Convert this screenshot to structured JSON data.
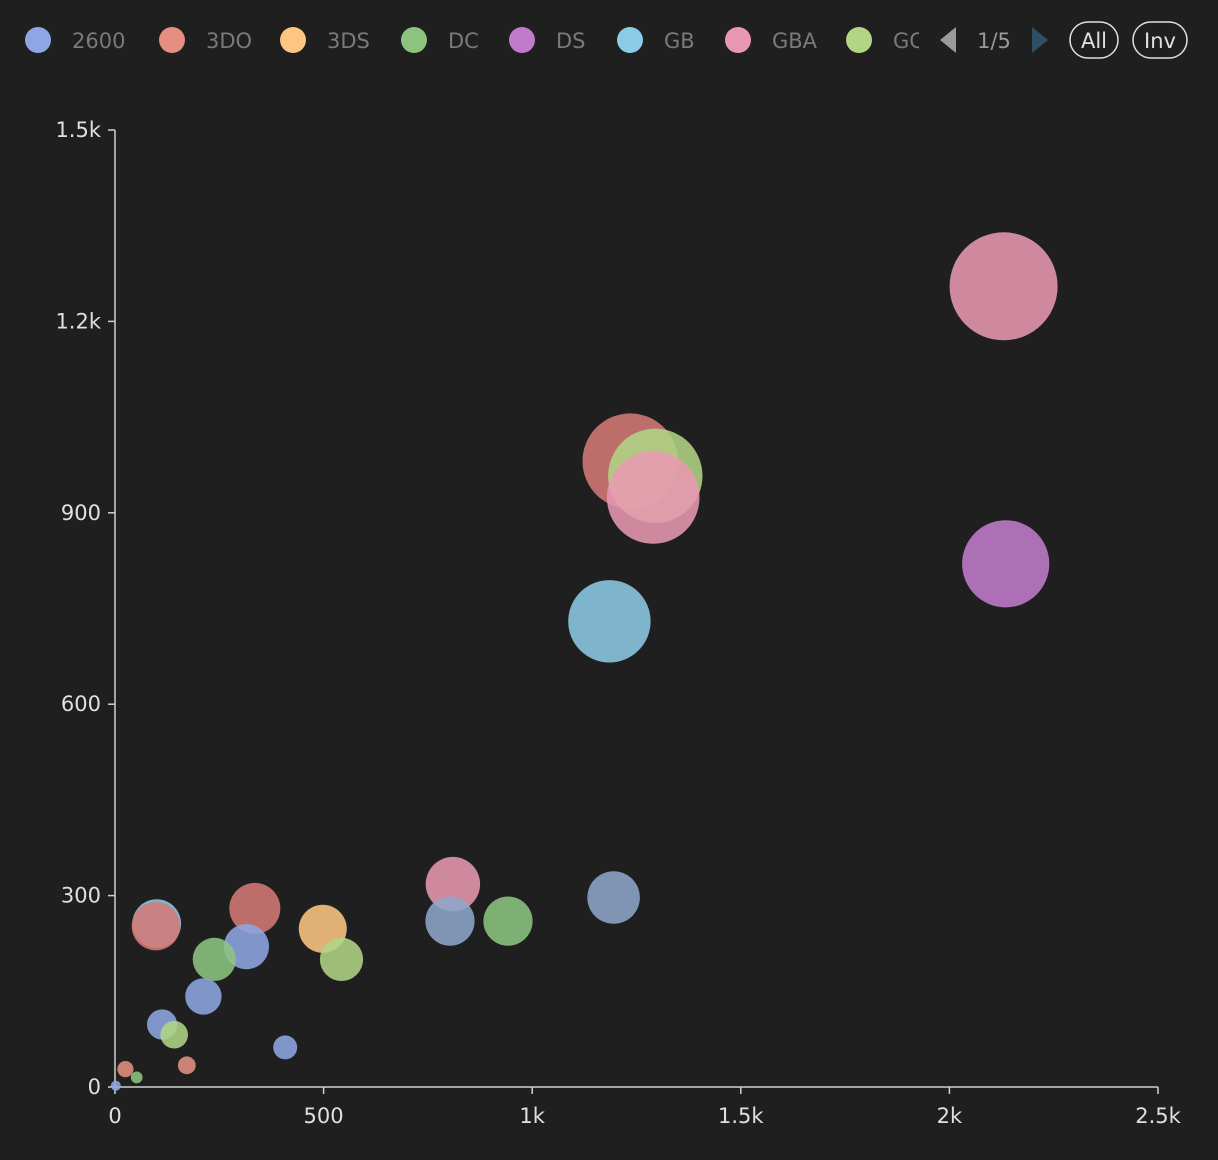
{
  "chart_data": {
    "type": "scatter",
    "bubble": true,
    "title": "",
    "xlabel": "",
    "ylabel": "",
    "xlim": [
      0,
      2500
    ],
    "ylim": [
      0,
      1500
    ],
    "x_ticks": [
      0,
      500,
      1000,
      1500,
      2000,
      2500
    ],
    "x_tick_labels": [
      "0",
      "500",
      "1k",
      "1.5k",
      "2k",
      "2.5k"
    ],
    "y_ticks": [
      0,
      300,
      600,
      900,
      1200,
      1500
    ],
    "y_tick_labels": [
      "0",
      "300",
      "600",
      "900",
      "1.2k",
      "1.5k"
    ],
    "grid": false,
    "legend": {
      "position": "top",
      "page_indicator": "1/5",
      "buttons": [
        "All",
        "Inv"
      ],
      "items": [
        {
          "name": "2600",
          "color": "#8ea6e3"
        },
        {
          "name": "3DO",
          "color": "#e48f7f"
        },
        {
          "name": "3DS",
          "color": "#fdc582"
        },
        {
          "name": "DC",
          "color": "#8cc47f"
        },
        {
          "name": "DS",
          "color": "#c17bcc"
        },
        {
          "name": "GB",
          "color": "#8ccbe5"
        },
        {
          "name": "GBA",
          "color": "#e898b2"
        },
        {
          "name": "GC",
          "color": "#b1d585"
        },
        {
          "name": "",
          "color": "#e48f7f"
        }
      ]
    },
    "points": [
      {
        "color": "#e898b2",
        "x": 2130,
        "y": 1255,
        "size": 1255
      },
      {
        "color": "#b1d585",
        "x": 1295,
        "y": 958,
        "size": 958
      },
      {
        "color": "#e898b2",
        "x": 1290,
        "y": 924,
        "size": 924
      },
      {
        "color": "#d47a76",
        "x": 1235,
        "y": 981,
        "size": 981
      },
      {
        "color": "#c17bcc",
        "x": 2135,
        "y": 820,
        "size": 820
      },
      {
        "color": "#8ccbe5",
        "x": 1185,
        "y": 730,
        "size": 730
      },
      {
        "color": "#e898b2",
        "x": 810,
        "y": 318,
        "size": 318
      },
      {
        "color": "#8ea6c9",
        "x": 1195,
        "y": 297,
        "size": 297
      },
      {
        "color": "#8ccbe5",
        "x": 100,
        "y": 256,
        "size": 256
      },
      {
        "color": "#d47a76",
        "x": 335,
        "y": 280,
        "size": 280
      },
      {
        "color": "#d47a76",
        "x": 98,
        "y": 252,
        "size": 252
      },
      {
        "color": "#8ea6c9",
        "x": 803,
        "y": 260,
        "size": 260
      },
      {
        "color": "#8cc47f",
        "x": 942,
        "y": 260,
        "size": 260
      },
      {
        "color": "#fdc582",
        "x": 498,
        "y": 248,
        "size": 248
      },
      {
        "color": "#8ea6e3",
        "x": 315,
        "y": 220,
        "size": 220
      },
      {
        "color": "#8cc47f",
        "x": 238,
        "y": 200,
        "size": 200
      },
      {
        "color": "#b1d585",
        "x": 543,
        "y": 200,
        "size": 200
      },
      {
        "color": "#8ea6e3",
        "x": 212,
        "y": 142,
        "size": 142
      },
      {
        "color": "#8ea6e3",
        "x": 113,
        "y": 98,
        "size": 98
      },
      {
        "color": "#b1d585",
        "x": 142,
        "y": 82,
        "size": 82
      },
      {
        "color": "#8ea6e3",
        "x": 408,
        "y": 62,
        "size": 62
      },
      {
        "color": "#e48f7f",
        "x": 172,
        "y": 34,
        "size": 34
      },
      {
        "color": "#e48f7f",
        "x": 25,
        "y": 28,
        "size": 28
      },
      {
        "color": "#8cc47f",
        "x": 52,
        "y": 15,
        "size": 15
      },
      {
        "color": "#8ea6e3",
        "x": 2,
        "y": 2,
        "size": 2
      }
    ]
  }
}
